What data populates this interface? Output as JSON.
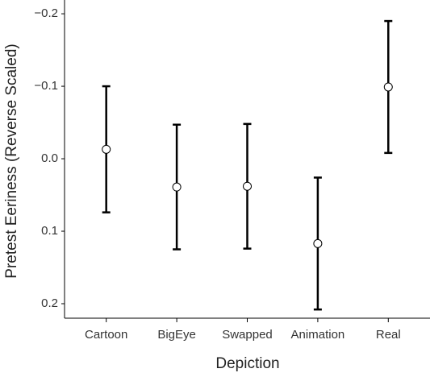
{
  "chart_data": {
    "type": "errorbar",
    "x_label": "Depiction",
    "y_label": "Pretest Eeriness (Reverse Scaled)",
    "categories": [
      "Cartoon",
      "BigEye",
      "Swapped",
      "Animation",
      "Real"
    ],
    "values": [
      -0.013,
      0.039,
      0.038,
      0.117,
      -0.099
    ],
    "errors": [
      0.087,
      0.086,
      0.086,
      0.091,
      0.091
    ],
    "ylim": [
      0.22,
      -0.219
    ],
    "yticks": [
      {
        "value": -0.2,
        "label": "−0.2"
      },
      {
        "value": -0.1,
        "label": "−0.1"
      },
      {
        "value": 0,
        "label": "0.0"
      },
      {
        "value": 0.1,
        "label": "0.1"
      },
      {
        "value": 0.2,
        "label": "0.2"
      }
    ],
    "color": "#000000",
    "marker_fill": "#ffffff",
    "grid": false
  }
}
